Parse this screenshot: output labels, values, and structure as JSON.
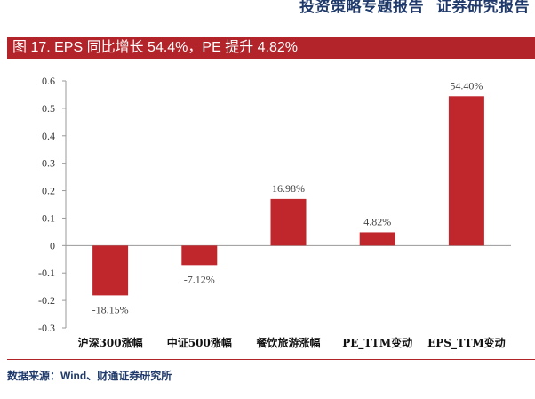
{
  "header": {
    "report_type": "投资策略专题报告",
    "firm": "证券研究报告"
  },
  "figure_title": "图 17. EPS 同比增长 54.4%，PE 提升 4.82%",
  "source": "数据来源：Wind、财通证券研究所",
  "colors": {
    "accent": "#b3242a",
    "bar": "#c0272d",
    "header_text": "#1f3a6b"
  },
  "chart_data": {
    "type": "bar",
    "title": "",
    "xlabel": "",
    "ylabel": "",
    "categories": [
      "沪深300涨幅",
      "中证500涨幅",
      "餐饮旅游涨幅",
      "PE_TTM变动",
      "EPS_TTM变动"
    ],
    "values": [
      -0.1815,
      -0.0712,
      0.1698,
      0.0482,
      0.544
    ],
    "data_labels": [
      "-18.15%",
      "-7.12%",
      "16.98%",
      "4.82%",
      "54.40%"
    ],
    "yticks": [
      "0.6",
      "0.5",
      "0.4",
      "0.3",
      "0.2",
      "0.1",
      "0",
      "-0.1",
      "-0.2",
      "-0.3"
    ],
    "ytick_values": [
      0.6,
      0.5,
      0.4,
      0.3,
      0.2,
      0.1,
      0,
      -0.1,
      -0.2,
      -0.3
    ],
    "ylim": [
      -0.3,
      0.6
    ],
    "grid": false,
    "legend": "none"
  }
}
